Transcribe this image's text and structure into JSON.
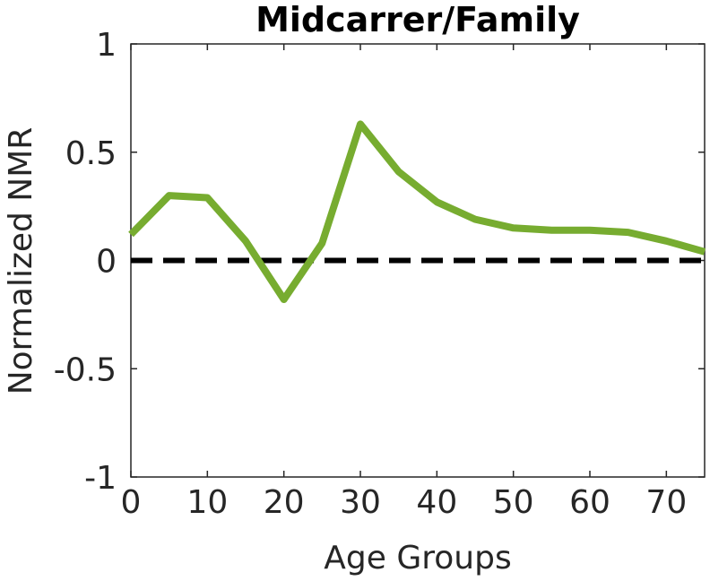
{
  "chart_data": {
    "type": "line",
    "title": "Midcarrer/Family",
    "xlabel": "Age Groups",
    "ylabel": "Normalized NMR",
    "xlim": [
      0,
      75
    ],
    "ylim": [
      -1,
      1
    ],
    "xticks": [
      "0",
      "10",
      "20",
      "30",
      "40",
      "50",
      "60",
      "70"
    ],
    "yticks": [
      "1",
      "0.5",
      "0",
      "-0.5",
      "-1"
    ],
    "grid": false,
    "series": [
      {
        "x": [
          0,
          5,
          10,
          15,
          20,
          25,
          30,
          35,
          40,
          45,
          50,
          55,
          60,
          65,
          70,
          75
        ],
        "y": [
          0.12,
          0.3,
          0.29,
          0.09,
          -0.18,
          0.08,
          0.63,
          0.41,
          0.27,
          0.19,
          0.15,
          0.14,
          0.14,
          0.13,
          0.09,
          0.04
        ],
        "color": "#77ac30"
      }
    ],
    "reference_line": {
      "y": 0,
      "style": "dashed",
      "color": "#000000"
    }
  }
}
